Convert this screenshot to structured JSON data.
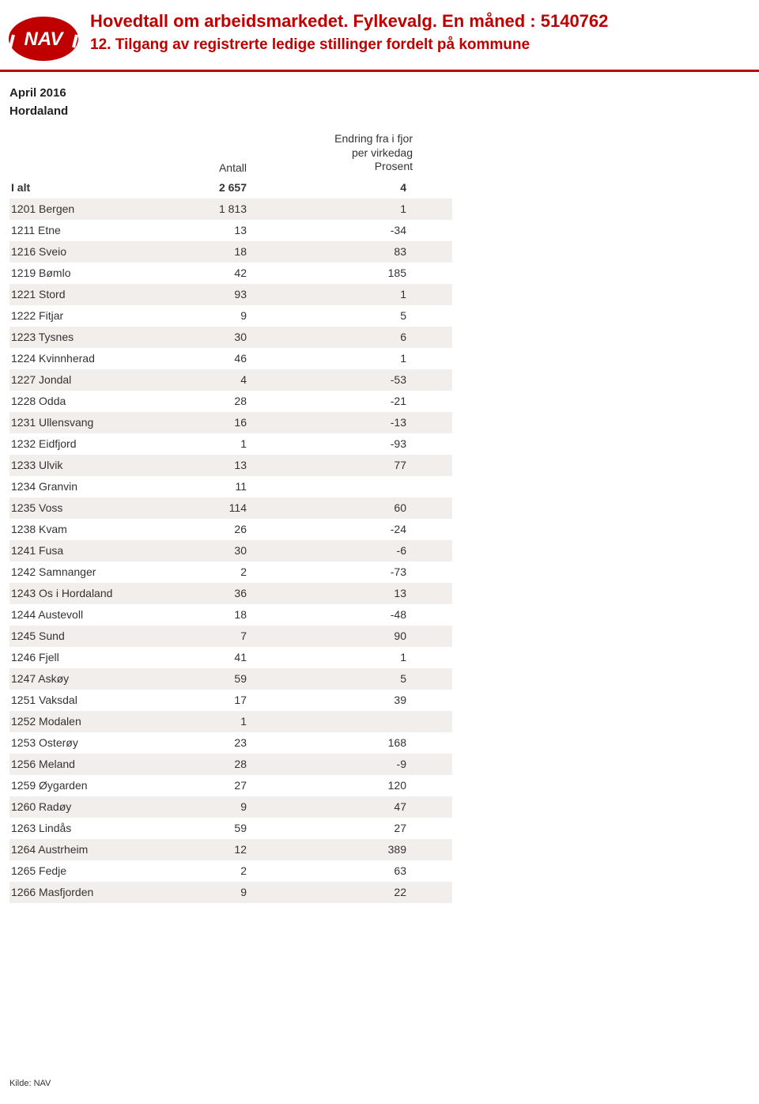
{
  "header": {
    "title": "Hovedtall om arbeidsmarkedet. Fylkevalg. En måned : 5140762",
    "subtitle": "12. Tilgang av registrerte ledige stillinger fordelt på kommune",
    "logo_colors": {
      "bg": "#c00000",
      "text": "#ffffff",
      "arcs": "#ffffff"
    }
  },
  "period": "April 2016",
  "region": "Hordaland",
  "table": {
    "columns": {
      "name": "",
      "antall": "Antall",
      "change_line1": "Endring fra i fjor",
      "change_line2": "per virkedag",
      "change_line3": "Prosent"
    },
    "total_row": {
      "name": "I alt",
      "antall": "2 657",
      "change": "4"
    },
    "rows": [
      {
        "name": "1201 Bergen",
        "antall": "1 813",
        "change": "1"
      },
      {
        "name": "1211 Etne",
        "antall": "13",
        "change": "-34"
      },
      {
        "name": "1216 Sveio",
        "antall": "18",
        "change": "83"
      },
      {
        "name": "1219 Bømlo",
        "antall": "42",
        "change": "185"
      },
      {
        "name": "1221 Stord",
        "antall": "93",
        "change": "1"
      },
      {
        "name": "1222 Fitjar",
        "antall": "9",
        "change": "5"
      },
      {
        "name": "1223 Tysnes",
        "antall": "30",
        "change": "6"
      },
      {
        "name": "1224 Kvinnherad",
        "antall": "46",
        "change": "1"
      },
      {
        "name": "1227 Jondal",
        "antall": "4",
        "change": "-53"
      },
      {
        "name": "1228 Odda",
        "antall": "28",
        "change": "-21"
      },
      {
        "name": "1231 Ullensvang",
        "antall": "16",
        "change": "-13"
      },
      {
        "name": "1232 Eidfjord",
        "antall": "1",
        "change": "-93"
      },
      {
        "name": "1233 Ulvik",
        "antall": "13",
        "change": "77"
      },
      {
        "name": "1234 Granvin",
        "antall": "11",
        "change": ""
      },
      {
        "name": "1235 Voss",
        "antall": "114",
        "change": "60"
      },
      {
        "name": "1238 Kvam",
        "antall": "26",
        "change": "-24"
      },
      {
        "name": "1241 Fusa",
        "antall": "30",
        "change": "-6"
      },
      {
        "name": "1242 Samnanger",
        "antall": "2",
        "change": "-73"
      },
      {
        "name": "1243 Os i Hordaland",
        "antall": "36",
        "change": "13"
      },
      {
        "name": "1244 Austevoll",
        "antall": "18",
        "change": "-48"
      },
      {
        "name": "1245 Sund",
        "antall": "7",
        "change": "90"
      },
      {
        "name": "1246 Fjell",
        "antall": "41",
        "change": "1"
      },
      {
        "name": "1247 Askøy",
        "antall": "59",
        "change": "5"
      },
      {
        "name": "1251 Vaksdal",
        "antall": "17",
        "change": "39"
      },
      {
        "name": "1252 Modalen",
        "antall": "1",
        "change": ""
      },
      {
        "name": "1253 Osterøy",
        "antall": "23",
        "change": "168"
      },
      {
        "name": "1256 Meland",
        "antall": "28",
        "change": "-9"
      },
      {
        "name": "1259 Øygarden",
        "antall": "27",
        "change": "120"
      },
      {
        "name": "1260 Radøy",
        "antall": "9",
        "change": "47"
      },
      {
        "name": "1263 Lindås",
        "antall": "59",
        "change": "27"
      },
      {
        "name": "1264 Austrheim",
        "antall": "12",
        "change": "389"
      },
      {
        "name": "1265 Fedje",
        "antall": "2",
        "change": "63"
      },
      {
        "name": "1266 Masfjorden",
        "antall": "9",
        "change": "22"
      }
    ],
    "alt_row_color": "#f2eeec",
    "text_color": "#333333"
  },
  "footer": "Kilde: NAV"
}
